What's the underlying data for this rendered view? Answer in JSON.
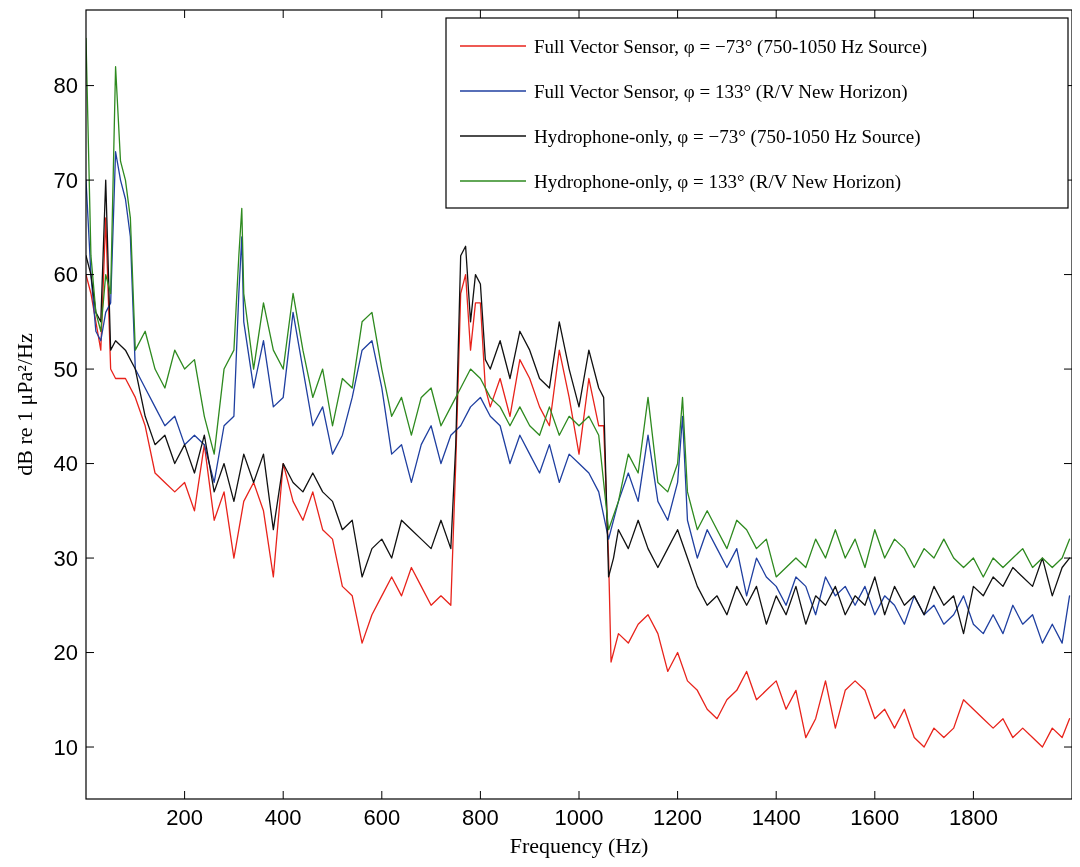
{
  "chart_data": {
    "type": "line",
    "xlabel": "Frequency (Hz)",
    "ylabel": "dB re 1 μPa²/Hz",
    "xlim": [
      0,
      2000
    ],
    "ylim": [
      4.5,
      88
    ],
    "xticks": [
      200,
      400,
      600,
      800,
      1000,
      1200,
      1400,
      1600,
      1800
    ],
    "yticks": [
      10,
      20,
      30,
      40,
      50,
      60,
      70,
      80
    ],
    "grid": false,
    "legend": "top right",
    "line_style": "solid",
    "marker": "none",
    "series": [
      {
        "name": "Full Vector Sensor, φ = −73° (750-1050 Hz Source)",
        "color": "#e8231b",
        "x": [
          0,
          10,
          20,
          30,
          40,
          50,
          60,
          80,
          100,
          120,
          140,
          160,
          180,
          200,
          220,
          240,
          260,
          280,
          300,
          320,
          340,
          360,
          380,
          400,
          420,
          440,
          460,
          480,
          500,
          520,
          540,
          560,
          580,
          600,
          620,
          640,
          660,
          680,
          700,
          720,
          740,
          750,
          760,
          770,
          780,
          790,
          800,
          810,
          820,
          840,
          860,
          880,
          900,
          920,
          940,
          960,
          980,
          1000,
          1020,
          1040,
          1050,
          1060,
          1065,
          1080,
          1100,
          1120,
          1140,
          1160,
          1180,
          1200,
          1220,
          1240,
          1260,
          1280,
          1300,
          1320,
          1340,
          1360,
          1380,
          1400,
          1420,
          1440,
          1460,
          1480,
          1500,
          1520,
          1540,
          1560,
          1580,
          1600,
          1620,
          1640,
          1660,
          1680,
          1700,
          1720,
          1740,
          1760,
          1780,
          1800,
          1820,
          1840,
          1860,
          1880,
          1900,
          1920,
          1940,
          1960,
          1980,
          1995
        ],
        "values": [
          60,
          58,
          55,
          52,
          66,
          50,
          49,
          49,
          47,
          44,
          39,
          38,
          37,
          38,
          35,
          42,
          34,
          37,
          30,
          36,
          38,
          35,
          28,
          40,
          36,
          34,
          37,
          33,
          32,
          27,
          26,
          21,
          24,
          26,
          28,
          26,
          29,
          27,
          25,
          26,
          25,
          40,
          58,
          60,
          52,
          57,
          57,
          48,
          46,
          49,
          45,
          51,
          49,
          46,
          44,
          52,
          47,
          41,
          49,
          44,
          44,
          30,
          19,
          22,
          21,
          23,
          24,
          22,
          18,
          20,
          17,
          16,
          14,
          13,
          15,
          16,
          18,
          15,
          16,
          17,
          14,
          16,
          11,
          13,
          17,
          12,
          16,
          17,
          16,
          13,
          14,
          12,
          14,
          11,
          10,
          12,
          11,
          12,
          15,
          14,
          13,
          12,
          13,
          11,
          12,
          11,
          10,
          12,
          11,
          13
        ]
      },
      {
        "name": "Full Vector Sensor, φ = 133° (R/V New Horizon)",
        "color": "#1f3fa0",
        "x": [
          0,
          10,
          20,
          30,
          40,
          50,
          60,
          70,
          80,
          90,
          100,
          120,
          140,
          160,
          180,
          200,
          220,
          240,
          260,
          280,
          300,
          310,
          316,
          320,
          340,
          360,
          380,
          400,
          420,
          440,
          460,
          480,
          500,
          520,
          540,
          560,
          580,
          600,
          620,
          640,
          660,
          680,
          700,
          720,
          740,
          760,
          780,
          800,
          820,
          840,
          860,
          880,
          900,
          920,
          940,
          960,
          980,
          1000,
          1020,
          1040,
          1060,
          1080,
          1100,
          1120,
          1140,
          1160,
          1180,
          1200,
          1210,
          1220,
          1240,
          1260,
          1280,
          1300,
          1320,
          1340,
          1360,
          1380,
          1400,
          1420,
          1440,
          1460,
          1480,
          1500,
          1520,
          1540,
          1560,
          1580,
          1600,
          1620,
          1640,
          1660,
          1680,
          1700,
          1720,
          1740,
          1760,
          1780,
          1800,
          1820,
          1840,
          1860,
          1880,
          1900,
          1920,
          1940,
          1960,
          1980,
          1995
        ],
        "values": [
          70,
          60,
          54,
          53,
          56,
          57,
          73,
          70,
          68,
          64,
          50,
          48,
          46,
          44,
          45,
          42,
          43,
          42,
          38,
          44,
          45,
          58,
          64,
          55,
          48,
          53,
          46,
          47,
          56,
          50,
          44,
          46,
          41,
          43,
          47,
          52,
          53,
          48,
          41,
          42,
          38,
          42,
          44,
          40,
          43,
          44,
          46,
          47,
          45,
          44,
          40,
          43,
          41,
          39,
          42,
          38,
          41,
          40,
          39,
          37,
          32,
          36,
          39,
          36,
          43,
          36,
          34,
          38,
          45,
          34,
          30,
          33,
          31,
          29,
          31,
          26,
          30,
          28,
          27,
          25,
          28,
          27,
          24,
          28,
          26,
          27,
          25,
          27,
          24,
          26,
          25,
          23,
          26,
          24,
          25,
          23,
          24,
          26,
          23,
          22,
          24,
          22,
          25,
          23,
          24,
          21,
          23,
          21,
          26
        ]
      },
      {
        "name": "Hydrophone-only, φ = −73° (750-1050 Hz Source)",
        "color": "#111111",
        "x": [
          0,
          10,
          20,
          30,
          40,
          50,
          60,
          80,
          100,
          120,
          140,
          160,
          180,
          200,
          220,
          240,
          260,
          280,
          300,
          320,
          340,
          360,
          380,
          400,
          420,
          440,
          460,
          480,
          500,
          520,
          540,
          560,
          580,
          600,
          620,
          640,
          660,
          680,
          700,
          720,
          740,
          750,
          760,
          770,
          780,
          790,
          800,
          810,
          820,
          840,
          860,
          880,
          900,
          920,
          940,
          960,
          980,
          1000,
          1020,
          1040,
          1050,
          1060,
          1070,
          1080,
          1100,
          1120,
          1140,
          1160,
          1180,
          1200,
          1220,
          1240,
          1260,
          1280,
          1300,
          1320,
          1340,
          1360,
          1380,
          1400,
          1420,
          1440,
          1460,
          1480,
          1500,
          1520,
          1540,
          1560,
          1580,
          1600,
          1620,
          1640,
          1660,
          1680,
          1700,
          1720,
          1740,
          1760,
          1780,
          1800,
          1820,
          1840,
          1860,
          1880,
          1900,
          1920,
          1940,
          1960,
          1980,
          1995
        ],
        "values": [
          62,
          60,
          56,
          55,
          70,
          52,
          53,
          52,
          50,
          45,
          42,
          43,
          40,
          42,
          39,
          43,
          37,
          40,
          36,
          41,
          38,
          41,
          33,
          40,
          38,
          37,
          39,
          37,
          36,
          33,
          34,
          28,
          31,
          32,
          30,
          34,
          33,
          32,
          31,
          34,
          31,
          42,
          62,
          63,
          55,
          60,
          59,
          51,
          50,
          53,
          49,
          54,
          52,
          49,
          48,
          55,
          50,
          46,
          52,
          48,
          47,
          28,
          30,
          33,
          31,
          34,
          31,
          29,
          31,
          33,
          30,
          27,
          25,
          26,
          24,
          27,
          25,
          27,
          23,
          26,
          24,
          27,
          23,
          26,
          25,
          27,
          24,
          26,
          25,
          28,
          24,
          27,
          25,
          26,
          24,
          27,
          25,
          26,
          22,
          27,
          26,
          28,
          27,
          29,
          28,
          27,
          30,
          26,
          29,
          30
        ]
      },
      {
        "name": "Hydrophone-only, φ = 133° (R/V New Horizon)",
        "color": "#2e8a1f",
        "x": [
          0,
          10,
          20,
          30,
          40,
          50,
          60,
          70,
          80,
          90,
          100,
          120,
          140,
          160,
          180,
          200,
          220,
          240,
          260,
          280,
          300,
          310,
          316,
          320,
          340,
          360,
          380,
          400,
          420,
          440,
          460,
          480,
          500,
          520,
          540,
          560,
          580,
          600,
          620,
          640,
          660,
          680,
          700,
          720,
          740,
          760,
          780,
          800,
          820,
          840,
          860,
          880,
          900,
          920,
          940,
          960,
          980,
          1000,
          1020,
          1040,
          1060,
          1080,
          1100,
          1120,
          1140,
          1160,
          1180,
          1200,
          1210,
          1220,
          1240,
          1260,
          1280,
          1300,
          1320,
          1340,
          1360,
          1380,
          1400,
          1420,
          1440,
          1460,
          1480,
          1500,
          1520,
          1540,
          1560,
          1580,
          1600,
          1620,
          1640,
          1660,
          1680,
          1700,
          1720,
          1740,
          1760,
          1780,
          1800,
          1820,
          1840,
          1860,
          1880,
          1900,
          1920,
          1940,
          1960,
          1980,
          1995
        ],
        "values": [
          85,
          62,
          56,
          54,
          60,
          58,
          82,
          72,
          70,
          66,
          52,
          54,
          50,
          48,
          52,
          50,
          51,
          45,
          41,
          50,
          52,
          62,
          67,
          58,
          50,
          57,
          52,
          50,
          58,
          52,
          47,
          50,
          44,
          49,
          48,
          55,
          56,
          50,
          45,
          47,
          43,
          47,
          48,
          44,
          46,
          48,
          50,
          49,
          47,
          46,
          44,
          46,
          44,
          43,
          46,
          43,
          45,
          44,
          45,
          43,
          33,
          36,
          41,
          39,
          47,
          38,
          37,
          40,
          47,
          37,
          33,
          35,
          33,
          31,
          34,
          33,
          31,
          32,
          28,
          29,
          30,
          29,
          32,
          30,
          33,
          30,
          32,
          29,
          33,
          30,
          32,
          31,
          29,
          31,
          30,
          32,
          30,
          29,
          30,
          28,
          30,
          29,
          30,
          31,
          29,
          30,
          29,
          30,
          32
        ]
      }
    ]
  }
}
